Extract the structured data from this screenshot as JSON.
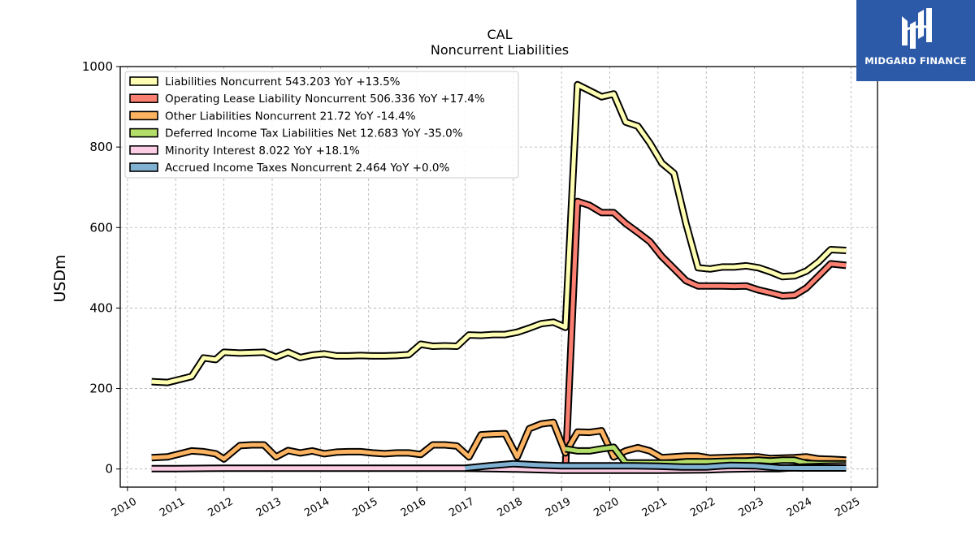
{
  "brand": {
    "name": "MIDGARD FINANCE",
    "background": "#2c5aa8"
  },
  "chart_data": {
    "type": "line",
    "title": "CAL",
    "subtitle": "Noncurrent  Liabilities",
    "ylabel": "USDm",
    "xlabel": "",
    "xlim": [
      2009.85,
      2025.55
    ],
    "ylim": [
      -45,
      1000
    ],
    "yticks": [
      0,
      200,
      400,
      600,
      800,
      1000
    ],
    "xticks": [
      2010,
      2011,
      2012,
      2013,
      2014,
      2015,
      2016,
      2017,
      2018,
      2019,
      2020,
      2021,
      2022,
      2023,
      2024,
      2025
    ],
    "grid": true,
    "legend_position": "top-left",
    "series": [
      {
        "name": "Liabilities Noncurrent",
        "legend": "Liabilities Noncurrent  543.203 YoY +13.5%",
        "color": "#ffffb3",
        "x": [
          2010.5,
          2010.83,
          2011.0,
          2011.33,
          2011.58,
          2011.83,
          2012.0,
          2012.33,
          2012.58,
          2012.83,
          2013.08,
          2013.33,
          2013.58,
          2013.83,
          2014.08,
          2014.33,
          2014.58,
          2014.83,
          2015.08,
          2015.33,
          2015.58,
          2015.83,
          2016.08,
          2016.33,
          2016.58,
          2016.83,
          2017.08,
          2017.33,
          2017.58,
          2017.83,
          2018.08,
          2018.33,
          2018.58,
          2018.83,
          2019.08,
          2019.33,
          2019.58,
          2019.83,
          2020.08,
          2020.33,
          2020.58,
          2020.83,
          2021.08,
          2021.33,
          2021.58,
          2021.83,
          2022.08,
          2022.33,
          2022.58,
          2022.83,
          2023.08,
          2023.33,
          2023.58,
          2023.83,
          2024.08,
          2024.33,
          2024.58,
          2024.9
        ],
        "y": [
          217,
          215,
          220,
          230,
          276,
          272,
          290,
          288,
          289,
          290,
          278,
          290,
          277,
          283,
          286,
          281,
          281,
          282,
          281,
          281,
          282,
          284,
          310,
          305,
          306,
          305,
          333,
          332,
          334,
          334,
          340,
          350,
          361,
          365,
          352,
          955,
          940,
          925,
          932,
          862,
          852,
          810,
          760,
          735,
          610,
          500,
          497,
          502,
          502,
          505,
          500,
          490,
          478,
          480,
          492,
          515,
          545,
          543
        ]
      },
      {
        "name": "Operating Lease Liability Noncurrent",
        "legend": "Operating Lease Liability Noncurrent  506.336 YoY +17.4%",
        "color": "#fb8072",
        "x": [
          2019.08,
          2019.33,
          2019.58,
          2019.83,
          2020.08,
          2020.33,
          2020.58,
          2020.83,
          2021.08,
          2021.33,
          2021.58,
          2021.83,
          2022.08,
          2022.33,
          2022.58,
          2022.83,
          2023.08,
          2023.33,
          2023.58,
          2023.83,
          2024.08,
          2024.33,
          2024.58,
          2024.9
        ],
        "y": [
          0,
          665,
          655,
          637,
          637,
          610,
          588,
          565,
          528,
          498,
          468,
          455,
          455,
          455,
          454,
          455,
          445,
          438,
          430,
          432,
          450,
          480,
          510,
          506
        ]
      },
      {
        "name": "Other Liabilities Noncurrent",
        "legend": "Other Liabilities Noncurrent  21.72 YoY -14.4%",
        "color": "#fdb462",
        "x": [
          2010.5,
          2010.83,
          2011.0,
          2011.33,
          2011.58,
          2011.83,
          2012.0,
          2012.33,
          2012.58,
          2012.83,
          2013.08,
          2013.33,
          2013.58,
          2013.83,
          2014.08,
          2014.33,
          2014.58,
          2014.83,
          2015.08,
          2015.33,
          2015.58,
          2015.83,
          2016.08,
          2016.33,
          2016.58,
          2016.83,
          2017.08,
          2017.33,
          2017.58,
          2017.83,
          2018.08,
          2018.33,
          2018.58,
          2018.83,
          2019.08,
          2019.33,
          2019.58,
          2019.83,
          2020.08,
          2020.33,
          2020.58,
          2020.83,
          2021.08,
          2021.33,
          2021.58,
          2021.83,
          2022.08,
          2022.33,
          2022.58,
          2022.83,
          2023.08,
          2023.33,
          2023.58,
          2023.83,
          2024.08,
          2024.33,
          2024.58,
          2024.9
        ],
        "y": [
          28,
          30,
          35,
          45,
          43,
          38,
          25,
          58,
          60,
          60,
          30,
          46,
          40,
          45,
          38,
          42,
          43,
          43,
          40,
          38,
          40,
          40,
          36,
          60,
          60,
          57,
          30,
          85,
          87,
          88,
          30,
          100,
          112,
          116,
          40,
          92,
          91,
          95,
          30,
          45,
          53,
          45,
          28,
          30,
          32,
          32,
          27,
          28,
          29,
          30,
          30,
          26,
          27,
          28,
          30,
          25,
          24,
          22
        ]
      },
      {
        "name": "Deferred Income Tax Liabilities Net",
        "legend": "Deferred Income Tax Liabilities Net  12.683 YoY -35.0%",
        "color": "#b3de69",
        "x": [
          2019.08,
          2019.33,
          2019.58,
          2019.83,
          2020.08,
          2020.33,
          2020.58,
          2020.83,
          2021.08,
          2021.33,
          2021.58,
          2021.83,
          2022.08,
          2022.33,
          2022.58,
          2022.83,
          2023.08,
          2023.33,
          2023.58,
          2023.83,
          2024.08,
          2024.33,
          2024.58,
          2024.9
        ],
        "y": [
          50,
          45,
          45,
          50,
          54,
          15,
          15,
          15,
          15,
          15,
          18,
          18,
          18,
          19,
          20,
          20,
          22,
          20,
          22,
          22,
          14,
          13,
          13,
          13
        ]
      },
      {
        "name": "Minority Interest",
        "legend": "Minority Interest  8.022 YoY +18.1%",
        "color": "#fccde5",
        "x": [
          2010.5,
          2011.0,
          2012.0,
          2013.0,
          2014.0,
          2015.0,
          2016.0,
          2017.0,
          2018.0,
          2019.0,
          2020.0,
          2021.0,
          2022.0,
          2022.5,
          2023.0,
          2023.5,
          2024.0,
          2024.5,
          2024.9
        ],
        "y": [
          1,
          1,
          2,
          2,
          2,
          2,
          2,
          2,
          0,
          -3,
          -3,
          -3,
          -2,
          0,
          1,
          1,
          5,
          7,
          8
        ]
      },
      {
        "name": "Accrued Income Taxes Noncurrent",
        "legend": "Accrued Income Taxes Noncurrent  2.464 YoY +0.0%",
        "color": "#80b1d3",
        "x": [
          2017.0,
          2017.5,
          2018.0,
          2018.5,
          2019.0,
          2019.5,
          2020.0,
          2020.5,
          2021.0,
          2021.5,
          2022.0,
          2022.5,
          2023.0,
          2023.5,
          2024.0,
          2024.5,
          2024.9
        ],
        "y": [
          2,
          8,
          13,
          10,
          8,
          8,
          8,
          8,
          7,
          5,
          5,
          9,
          8,
          3,
          2.5,
          2.5,
          2.5
        ]
      }
    ]
  }
}
